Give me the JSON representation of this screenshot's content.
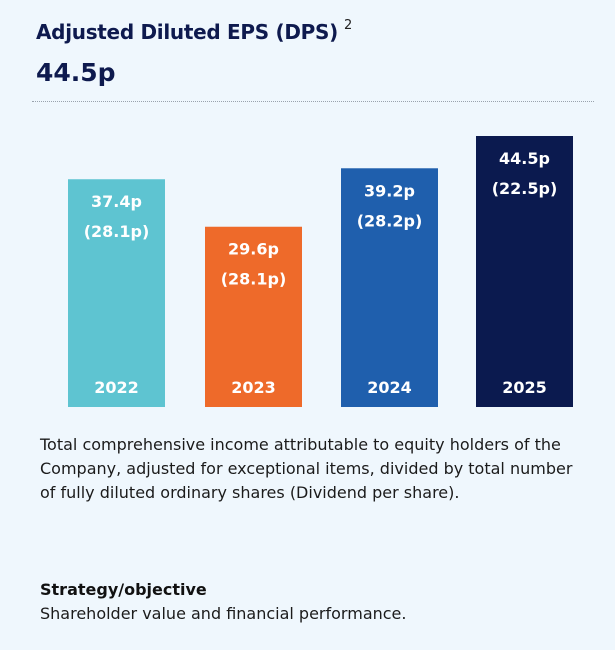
{
  "chart_data": {
    "type": "bar",
    "title": "Adjusted Diluted EPS (DPS)",
    "title_footnote": "2",
    "headline_value": "44.5p",
    "categories": [
      "2022",
      "2023",
      "2024",
      "2025"
    ],
    "series": [
      {
        "name": "Adjusted Diluted EPS",
        "values": [
          37.4,
          29.6,
          39.2,
          44.5
        ]
      },
      {
        "name": "DPS",
        "values": [
          28.1,
          28.1,
          28.2,
          22.5
        ]
      }
    ],
    "value_labels": [
      "37.4p",
      "29.6p",
      "39.2p",
      "44.5p"
    ],
    "secondary_labels": [
      "(28.1p)",
      "(28.1p)",
      "(28.2p)",
      "(22.5p)"
    ],
    "colors": [
      "#5ec4d1",
      "#ee6a2a",
      "#1f5fad",
      "#0b1a4f"
    ],
    "ylim": [
      0,
      44.5
    ],
    "grid": false,
    "xlabel": "",
    "ylabel": ""
  },
  "description": "Total comprehensive income attributable to equity holders of the Company, adjusted for exceptional items, divided by total number of fully diluted ordinary shares (Dividend per share).",
  "strategy": {
    "heading": "Strategy/objective",
    "text": "Shareholder value and financial performance."
  }
}
